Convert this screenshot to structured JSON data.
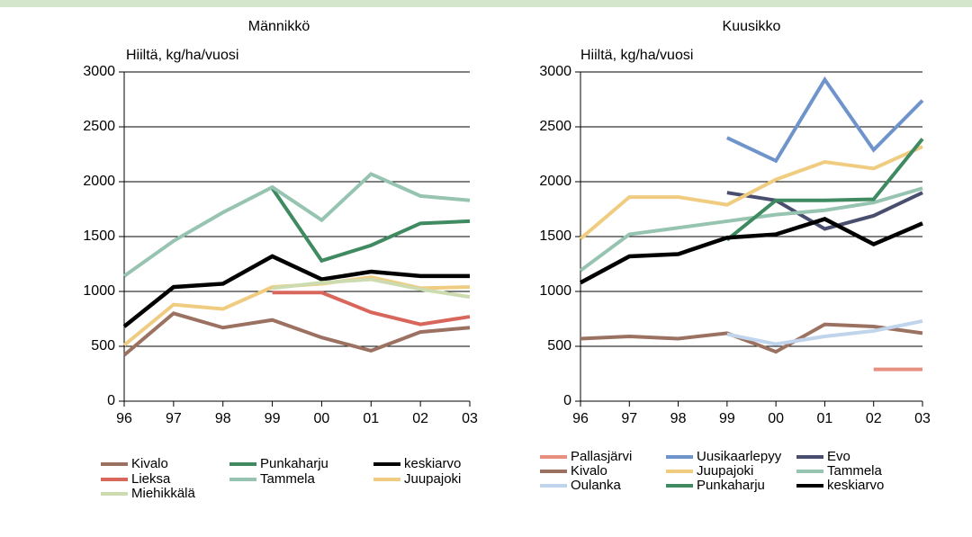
{
  "chart_data": [
    {
      "type": "line",
      "title": "Männikkö",
      "y_label": "Hiiltä, kg/ha/vuosi",
      "categories": [
        "96",
        "97",
        "98",
        "99",
        "00",
        "01",
        "02",
        "03"
      ],
      "ylim": [
        0,
        3000
      ],
      "yticks": [
        0,
        500,
        1000,
        1500,
        2000,
        2500,
        3000
      ],
      "grid": true,
      "series": [
        {
          "name": "Kivalo",
          "color": "#9b7261",
          "values": [
            420,
            800,
            670,
            740,
            580,
            460,
            630,
            670
          ]
        },
        {
          "name": "Punkaharju",
          "color": "#3f8a60",
          "values": [
            null,
            null,
            null,
            1940,
            1280,
            1420,
            1620,
            1640
          ]
        },
        {
          "name": "keskiarvo",
          "color": "#000000",
          "values": [
            680,
            1040,
            1070,
            1320,
            1110,
            1180,
            1140,
            1140
          ]
        },
        {
          "name": "Lieksa",
          "color": "#d9665a",
          "values": [
            null,
            null,
            null,
            990,
            990,
            810,
            700,
            770
          ]
        },
        {
          "name": "Tammela",
          "color": "#96c4b0",
          "values": [
            1140,
            1460,
            1720,
            1950,
            1650,
            2070,
            1870,
            1830
          ]
        },
        {
          "name": "Juupajoki",
          "color": "#f0cc80",
          "values": [
            510,
            880,
            840,
            1040,
            1070,
            1130,
            1030,
            1040
          ]
        },
        {
          "name": "Miehikkälä",
          "color": "#cddcb0",
          "values": [
            null,
            null,
            null,
            1030,
            1080,
            1110,
            1020,
            950
          ]
        }
      ]
    },
    {
      "type": "line",
      "title": "Kuusikko",
      "y_label": "Hiiltä, kg/ha/vuosi",
      "categories": [
        "96",
        "97",
        "98",
        "99",
        "00",
        "01",
        "02",
        "03"
      ],
      "ylim": [
        0,
        3000
      ],
      "yticks": [
        0,
        500,
        1000,
        1500,
        2000,
        2500,
        3000
      ],
      "grid": true,
      "series": [
        {
          "name": "Pallasjärvi",
          "color": "#e89080",
          "values": [
            null,
            null,
            null,
            null,
            null,
            null,
            290,
            290
          ]
        },
        {
          "name": "Uusikaarlepyy",
          "color": "#6f94cc",
          "values": [
            null,
            null,
            null,
            2400,
            2190,
            2930,
            2290,
            2740
          ]
        },
        {
          "name": "Evo",
          "color": "#4a4e6e",
          "values": [
            null,
            null,
            null,
            1900,
            1830,
            1570,
            1690,
            1900
          ]
        },
        {
          "name": "Kivalo",
          "color": "#9b7261",
          "values": [
            570,
            590,
            570,
            620,
            450,
            700,
            680,
            620
          ]
        },
        {
          "name": "Juupajoki",
          "color": "#f0cc80",
          "values": [
            1480,
            1860,
            1860,
            1790,
            2020,
            2180,
            2120,
            2320
          ]
        },
        {
          "name": "Tammela",
          "color": "#96c4b0",
          "values": [
            1190,
            1520,
            1580,
            1640,
            1700,
            1740,
            1810,
            1940
          ]
        },
        {
          "name": "Oulanka",
          "color": "#c0d4ec",
          "values": [
            null,
            null,
            null,
            610,
            520,
            590,
            640,
            730
          ]
        },
        {
          "name": "Punkaharju",
          "color": "#3f8a60",
          "values": [
            null,
            null,
            null,
            1470,
            1830,
            1830,
            1840,
            2390
          ]
        },
        {
          "name": "keskiarvo",
          "color": "#000000",
          "values": [
            1080,
            1320,
            1340,
            1490,
            1520,
            1660,
            1430,
            1620
          ]
        }
      ]
    }
  ]
}
